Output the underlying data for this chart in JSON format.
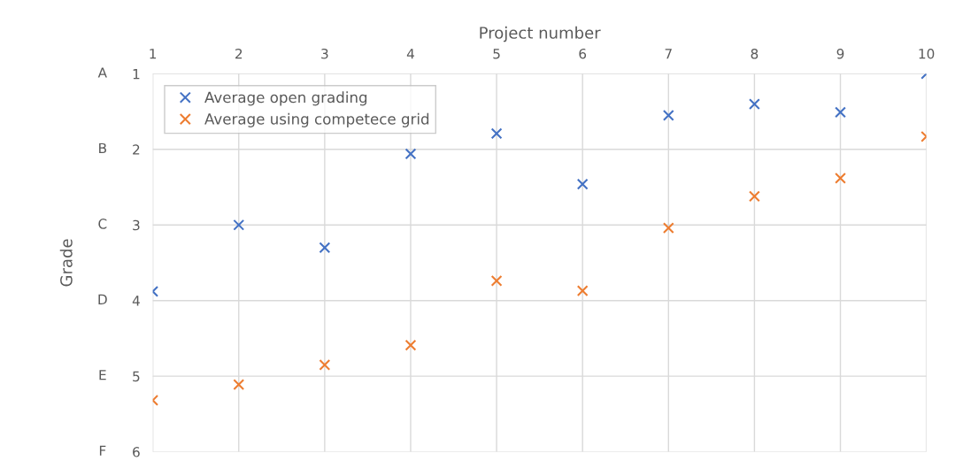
{
  "chart_data": {
    "type": "scatter",
    "xlabel": "Project number",
    "ylabel": "Grade",
    "x": [
      1,
      2,
      3,
      4,
      5,
      6,
      7,
      8,
      9,
      10
    ],
    "series": [
      {
        "name": "Average open grading",
        "color": "#4472c4",
        "values": [
          3.88,
          3.0,
          3.3,
          2.06,
          1.79,
          2.46,
          1.55,
          1.4,
          1.51,
          1.0
        ]
      },
      {
        "name": "Average using competece grid",
        "color": "#ed7d31",
        "values": [
          5.32,
          5.11,
          4.85,
          4.59,
          3.74,
          3.87,
          3.04,
          2.62,
          2.38,
          1.83
        ]
      }
    ],
    "xlim": [
      1,
      10
    ],
    "xticks": [
      1,
      2,
      3,
      4,
      5,
      6,
      7,
      8,
      9,
      10
    ],
    "ylim": [
      6,
      1
    ],
    "yticks": [
      1,
      2,
      3,
      4,
      5,
      6
    ],
    "annotations": [
      "A",
      "B",
      "C",
      "D",
      "E",
      "F"
    ],
    "grid": true,
    "legend": "top left",
    "marker": "cross"
  }
}
